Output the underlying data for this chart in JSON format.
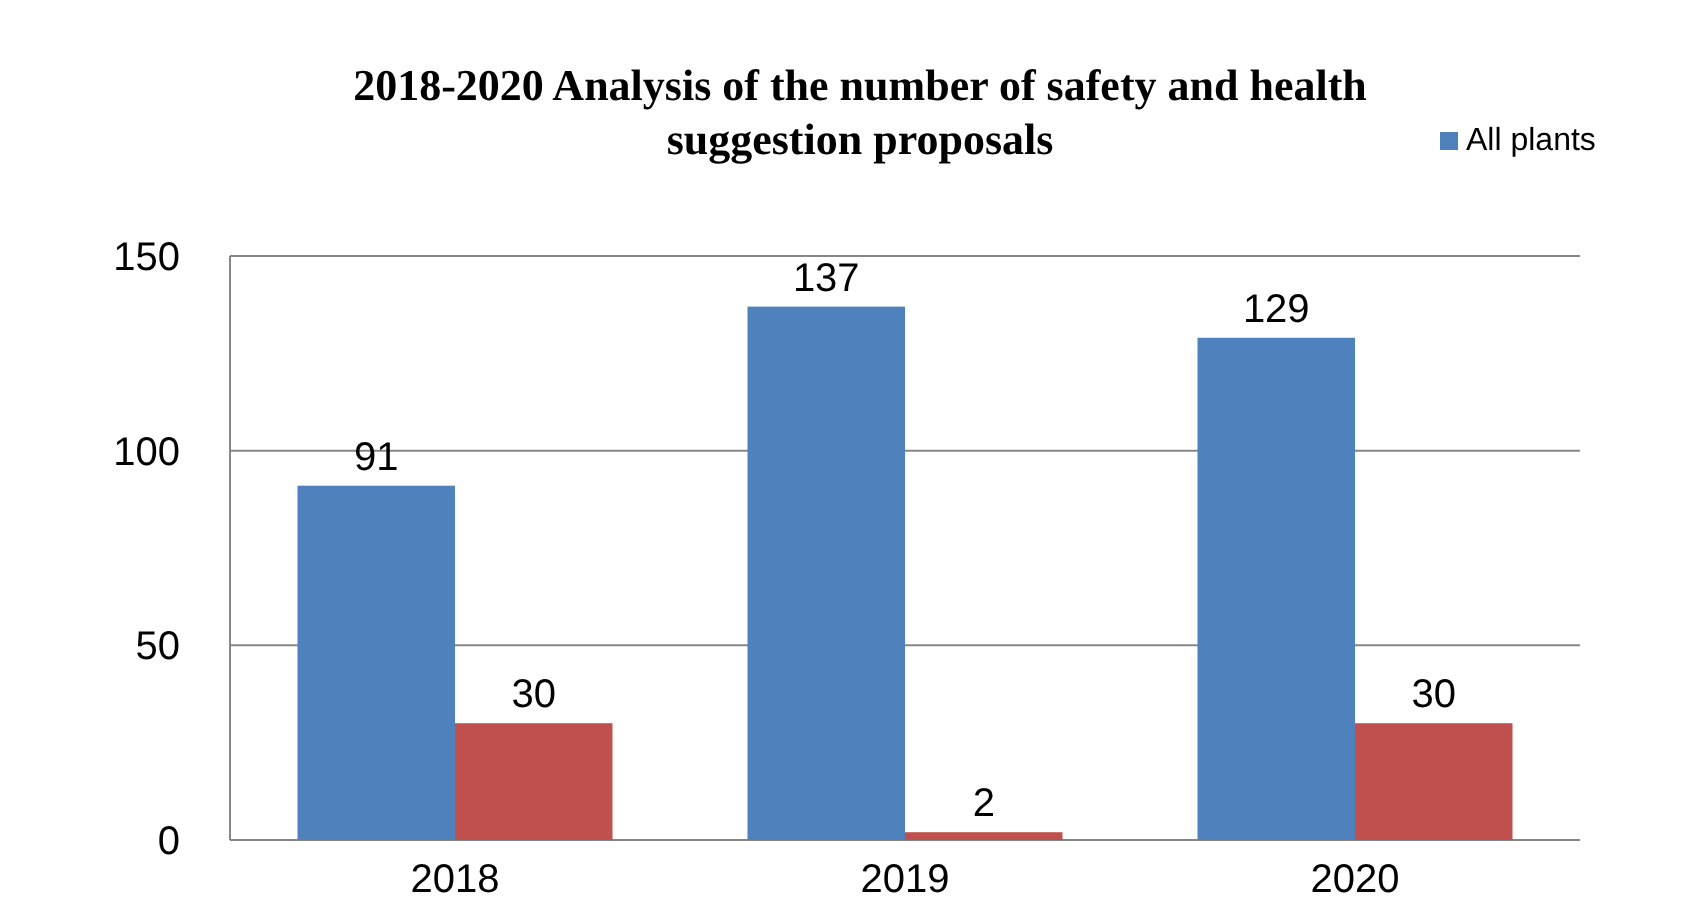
{
  "chart_data": {
    "type": "bar",
    "title": "2018-2020 Analysis of the number of safety and health suggestion proposals",
    "categories": [
      "2018",
      "2019",
      "2020"
    ],
    "series": [
      {
        "name": "All plants",
        "color": "#4f81bd",
        "values": [
          91,
          137,
          129
        ]
      },
      {
        "color": "#c0504d",
        "values": [
          30,
          2,
          30
        ]
      }
    ],
    "ylim": [
      0,
      150
    ],
    "yticks": [
      0,
      50,
      100,
      150
    ],
    "grid": "y",
    "legend": "top right",
    "data_labels": true
  }
}
